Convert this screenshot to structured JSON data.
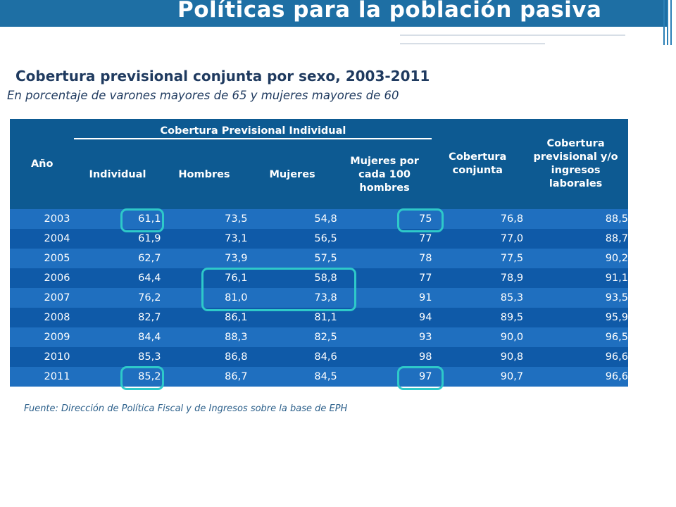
{
  "header": {
    "title": "Políticas para la población pasiva"
  },
  "subtitle": "Cobertura previsional conjunta por sexo, 2003-2011",
  "subtitle2": "En porcentaje de varones mayores de 65 y mujeres mayores de 60",
  "table": {
    "headers": {
      "year": "Año",
      "group": "Cobertura Previsional Individual",
      "individual": "Individual",
      "hombres": "Hombres",
      "mujeres": "Mujeres",
      "mujeres_por_100": "Mujeres por cada 100 hombres",
      "conjunta": "Cobertura conjunta",
      "ingresos": "Cobertura previsional y/o ingresos laborales"
    },
    "rows": [
      [
        "2003",
        "61,1",
        "73,5",
        "54,8",
        "75",
        "76,8",
        "88,5"
      ],
      [
        "2004",
        "61,9",
        "73,1",
        "56,5",
        "77",
        "77,0",
        "88,7"
      ],
      [
        "2005",
        "62,7",
        "73,9",
        "57,5",
        "78",
        "77,5",
        "90,2"
      ],
      [
        "2006",
        "64,4",
        "76,1",
        "58,8",
        "77",
        "78,9",
        "91,1"
      ],
      [
        "2007",
        "76,2",
        "81,0",
        "73,8",
        "91",
        "85,3",
        "93,5"
      ],
      [
        "2008",
        "82,7",
        "86,1",
        "81,1",
        "94",
        "89,5",
        "95,9"
      ],
      [
        "2009",
        "84,4",
        "88,3",
        "82,5",
        "93",
        "90,0",
        "96,5"
      ],
      [
        "2010",
        "85,3",
        "86,8",
        "84,6",
        "98",
        "90,8",
        "96,6"
      ],
      [
        "2011",
        "85,2",
        "86,7",
        "84,5",
        "97",
        "90,7",
        "96,6"
      ]
    ]
  },
  "source": "Fuente: Dirección de Política Fiscal y de Ingresos sobre la base de EPH",
  "colors": {
    "header_band": "#1e6fa4",
    "table_header": "#0d5a92",
    "row_light": "#1f6fbf",
    "row_dark": "#0f5aa8",
    "highlight": "#2ec9c9"
  }
}
